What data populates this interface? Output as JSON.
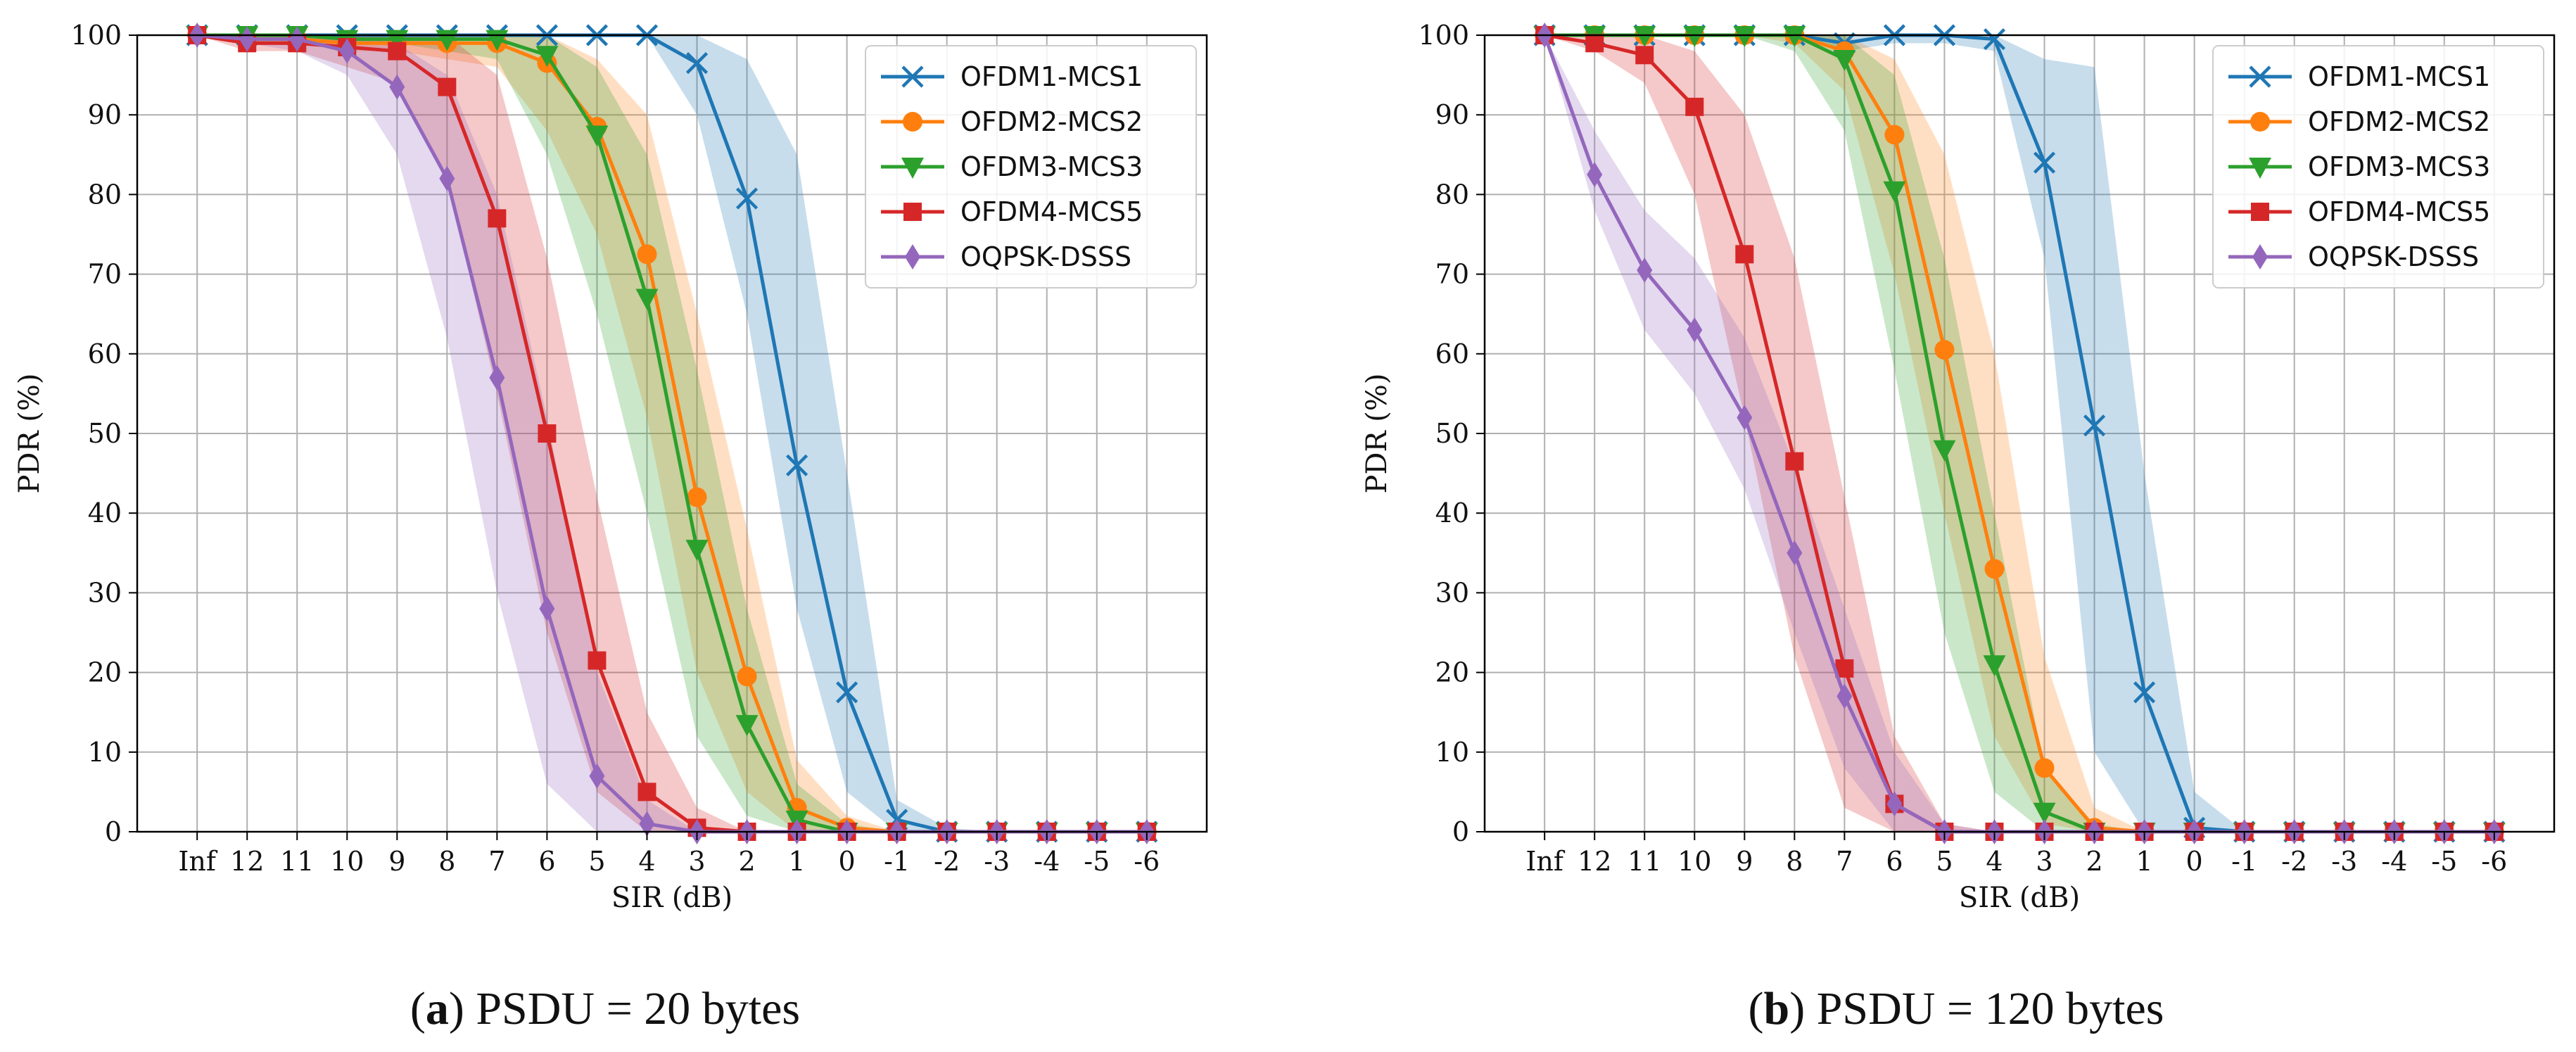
{
  "chart_data": [
    {
      "type": "line",
      "title": "",
      "caption": {
        "letter": "a",
        "text": "PSDU = 20 bytes"
      },
      "xlabel": "SIR (dB)",
      "ylabel": "PDR (%)",
      "categories": [
        "Inf",
        "12",
        "11",
        "10",
        "9",
        "8",
        "7",
        "6",
        "5",
        "4",
        "3",
        "2",
        "1",
        "0",
        "-1",
        "-2",
        "-3",
        "-4",
        "-5",
        "-6"
      ],
      "ylim": [
        0,
        100
      ],
      "yticks": [
        "0",
        "10",
        "20",
        "30",
        "40",
        "50",
        "60",
        "70",
        "80",
        "90",
        "100"
      ],
      "grid": true,
      "legend": "top-right",
      "series": [
        {
          "name": "OFDM1-MCS1",
          "color": "#1f77b4",
          "marker": "x",
          "values": [
            100,
            100,
            100,
            100,
            100,
            100,
            100,
            100,
            100,
            100,
            96.5,
            79.5,
            46,
            17.5,
            1.5,
            0,
            0,
            0,
            0,
            0
          ],
          "band_low": [
            100,
            100,
            100,
            100,
            100,
            100,
            100,
            100,
            100,
            100,
            90,
            65,
            28,
            5,
            0,
            0,
            0,
            0,
            0,
            0
          ],
          "band_high": [
            100,
            100,
            100,
            100,
            100,
            100,
            100,
            100,
            100,
            100,
            100,
            97,
            85,
            45,
            4,
            0.5,
            0,
            0,
            0,
            0
          ]
        },
        {
          "name": "OFDM2-MCS2",
          "color": "#ff7f0e",
          "marker": "o",
          "values": [
            100,
            99.5,
            99.5,
            99,
            99,
            99,
            99,
            96.5,
            88.5,
            72.5,
            42,
            19.5,
            3,
            0.5,
            0,
            0,
            0,
            0,
            0,
            0
          ],
          "band_low": [
            100,
            99,
            99,
            98,
            98,
            97,
            96,
            88,
            75,
            52,
            20,
            5,
            0,
            0,
            0,
            0,
            0,
            0,
            0,
            0
          ],
          "band_high": [
            100,
            100,
            100,
            100,
            100,
            100,
            100,
            100,
            97,
            90,
            65,
            38,
            9,
            2,
            0,
            0,
            0,
            0,
            0,
            0
          ]
        },
        {
          "name": "OFDM3-MCS3",
          "color": "#2ca02c",
          "marker": "v",
          "values": [
            100,
            100,
            100,
            99.5,
            99.5,
            99.5,
            99.5,
            97.5,
            87.5,
            67,
            35.5,
            13.5,
            1.5,
            0,
            0,
            0,
            0,
            0,
            0,
            0
          ],
          "band_low": [
            100,
            99,
            99,
            99,
            99,
            98,
            97,
            85,
            65,
            40,
            12,
            2,
            0,
            0,
            0,
            0,
            0,
            0,
            0,
            0
          ],
          "band_high": [
            100,
            100,
            100,
            100,
            100,
            100,
            100,
            100,
            96,
            85,
            58,
            28,
            6,
            1,
            0,
            0,
            0,
            0,
            0,
            0
          ]
        },
        {
          "name": "OFDM4-MCS5",
          "color": "#d62728",
          "marker": "s",
          "values": [
            100,
            99,
            99,
            98.5,
            98,
            93.5,
            77,
            50,
            21.5,
            5,
            0.5,
            0,
            0,
            0,
            0,
            0,
            0,
            0,
            0,
            0
          ],
          "band_low": [
            100,
            98,
            98,
            96,
            94,
            82,
            55,
            25,
            5,
            0,
            0,
            0,
            0,
            0,
            0,
            0,
            0,
            0,
            0,
            0
          ],
          "band_high": [
            100,
            100,
            100,
            100,
            100,
            100,
            95,
            72,
            42,
            15,
            3,
            0,
            0,
            0,
            0,
            0,
            0,
            0,
            0,
            0
          ]
        },
        {
          "name": "OQPSK-DSSS",
          "color": "#9467bd",
          "marker": "d",
          "values": [
            100,
            99.5,
            99.5,
            98,
            93.5,
            82,
            57,
            28,
            7,
            1,
            0,
            0,
            0,
            0,
            0,
            0,
            0,
            0,
            0,
            0
          ],
          "band_low": [
            100,
            99,
            98,
            95,
            85,
            62,
            30,
            6,
            0,
            0,
            0,
            0,
            0,
            0,
            0,
            0,
            0,
            0,
            0,
            0
          ],
          "band_high": [
            100,
            100,
            100,
            100,
            99,
            95,
            80,
            52,
            20,
            4,
            0,
            0,
            0,
            0,
            0,
            0,
            0,
            0,
            0,
            0
          ]
        }
      ]
    },
    {
      "type": "line",
      "title": "",
      "caption": {
        "letter": "b",
        "text": "PSDU = 120 bytes"
      },
      "xlabel": "SIR (dB)",
      "ylabel": "PDR (%)",
      "categories": [
        "Inf",
        "12",
        "11",
        "10",
        "9",
        "8",
        "7",
        "6",
        "5",
        "4",
        "3",
        "2",
        "1",
        "0",
        "-1",
        "-2",
        "-3",
        "-4",
        "-5",
        "-6"
      ],
      "ylim": [
        0,
        100
      ],
      "yticks": [
        "0",
        "10",
        "20",
        "30",
        "40",
        "50",
        "60",
        "70",
        "80",
        "90",
        "100"
      ],
      "grid": true,
      "legend": "top-right",
      "series": [
        {
          "name": "OFDM1-MCS1",
          "color": "#1f77b4",
          "marker": "x",
          "values": [
            100,
            100,
            100,
            100,
            100,
            100,
            99,
            100,
            100,
            99.5,
            84,
            51,
            17.5,
            0.5,
            0,
            0,
            0,
            0,
            0,
            0
          ],
          "band_low": [
            100,
            100,
            100,
            100,
            100,
            100,
            98,
            99,
            99,
            98,
            72,
            10,
            0,
            0,
            0,
            0,
            0,
            0,
            0,
            0
          ],
          "band_high": [
            100,
            100,
            100,
            100,
            100,
            100,
            100,
            100,
            100,
            100,
            97,
            96,
            45,
            5,
            0,
            0,
            0,
            0,
            0,
            0
          ]
        },
        {
          "name": "OFDM2-MCS2",
          "color": "#ff7f0e",
          "marker": "o",
          "values": [
            100,
            100,
            100,
            100,
            100,
            100,
            98,
            87.5,
            60.5,
            33,
            8,
            0.5,
            0,
            0,
            0,
            0,
            0,
            0,
            0,
            0
          ],
          "band_low": [
            100,
            100,
            100,
            100,
            100,
            99,
            93,
            70,
            40,
            12,
            1,
            0,
            0,
            0,
            0,
            0,
            0,
            0,
            0,
            0
          ],
          "band_high": [
            100,
            100,
            100,
            100,
            100,
            100,
            100,
            97,
            85,
            60,
            22,
            3,
            0,
            0,
            0,
            0,
            0,
            0,
            0,
            0
          ]
        },
        {
          "name": "OFDM3-MCS3",
          "color": "#2ca02c",
          "marker": "v",
          "values": [
            100,
            100,
            100,
            100,
            100,
            100,
            97,
            80.5,
            48,
            21,
            2.5,
            0,
            0,
            0,
            0,
            0,
            0,
            0,
            0,
            0
          ],
          "band_low": [
            100,
            100,
            100,
            100,
            100,
            98,
            88,
            58,
            25,
            5,
            0,
            0,
            0,
            0,
            0,
            0,
            0,
            0,
            0,
            0
          ],
          "band_high": [
            100,
            100,
            100,
            100,
            100,
            100,
            100,
            95,
            72,
            40,
            8,
            1,
            0,
            0,
            0,
            0,
            0,
            0,
            0,
            0
          ]
        },
        {
          "name": "OFDM4-MCS5",
          "color": "#d62728",
          "marker": "s",
          "values": [
            100,
            99,
            97.5,
            91,
            72.5,
            46.5,
            20.5,
            3.5,
            0,
            0,
            0,
            0,
            0,
            0,
            0,
            0,
            0,
            0,
            0,
            0
          ],
          "band_low": [
            100,
            98,
            94,
            80,
            52,
            22,
            3,
            0,
            0,
            0,
            0,
            0,
            0,
            0,
            0,
            0,
            0,
            0,
            0,
            0
          ],
          "band_high": [
            100,
            100,
            100,
            98,
            90,
            72,
            42,
            12,
            1,
            0,
            0,
            0,
            0,
            0,
            0,
            0,
            0,
            0,
            0,
            0
          ]
        },
        {
          "name": "OQPSK-DSSS",
          "color": "#9467bd",
          "marker": "d",
          "values": [
            100,
            82.5,
            70.5,
            63,
            52,
            35,
            17,
            3.5,
            0,
            0,
            0,
            0,
            0,
            0,
            0,
            0,
            0,
            0,
            0,
            0
          ],
          "band_low": [
            100,
            78,
            63,
            55,
            43,
            25,
            8,
            0,
            0,
            0,
            0,
            0,
            0,
            0,
            0,
            0,
            0,
            0,
            0,
            0
          ],
          "band_high": [
            100,
            88,
            78,
            72,
            62,
            46,
            28,
            10,
            1,
            0,
            0,
            0,
            0,
            0,
            0,
            0,
            0,
            0,
            0,
            0
          ]
        }
      ]
    }
  ]
}
